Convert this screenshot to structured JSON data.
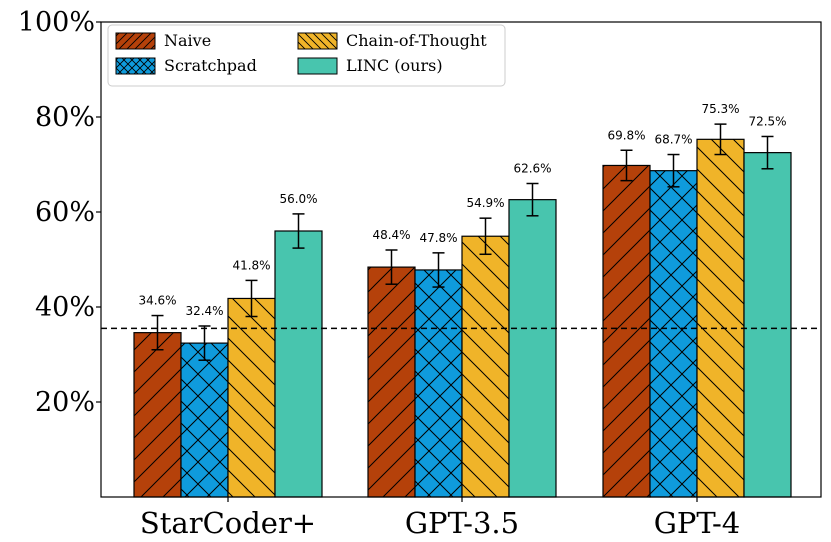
{
  "chart_data": {
    "type": "bar",
    "title": "",
    "xlabel": "",
    "ylabel": "",
    "ylim": [
      0,
      100
    ],
    "yticks": [
      20,
      40,
      60,
      80,
      100
    ],
    "ytick_labels": [
      "20%",
      "40%",
      "60%",
      "80%",
      "100%"
    ],
    "categories": [
      "StarCoder+",
      "GPT-3.5",
      "GPT-4"
    ],
    "series": [
      {
        "name": "Naive",
        "color": "#b5410a",
        "hatch": "diag-right",
        "values": [
          34.6,
          48.4,
          69.8
        ],
        "errors": [
          3.6,
          3.6,
          3.2
        ],
        "labels": [
          "34.6%",
          "48.4%",
          "69.8%"
        ]
      },
      {
        "name": "Scratchpad",
        "color": "#0f9bdc",
        "hatch": "cross",
        "values": [
          32.4,
          47.8,
          68.7
        ],
        "errors": [
          3.6,
          3.6,
          3.4
        ],
        "labels": [
          "32.4%",
          "47.8%",
          "68.7%"
        ]
      },
      {
        "name": "Chain-of-Thought",
        "color": "#f0b429",
        "hatch": "diag-left",
        "values": [
          41.8,
          54.9,
          75.3
        ],
        "errors": [
          3.8,
          3.8,
          3.2
        ],
        "labels": [
          "41.8%",
          "54.9%",
          "75.3%"
        ]
      },
      {
        "name": "LINC (ours)",
        "color": "#48c5ae",
        "hatch": "none",
        "values": [
          56.0,
          62.6,
          72.5
        ],
        "errors": [
          3.6,
          3.4,
          3.4
        ],
        "labels": [
          "56.0%",
          "62.6%",
          "72.5%"
        ]
      }
    ],
    "baseline": {
      "value": 35.5,
      "style": "dashed"
    },
    "legend": {
      "placement": "top-left",
      "columns": 2
    }
  }
}
